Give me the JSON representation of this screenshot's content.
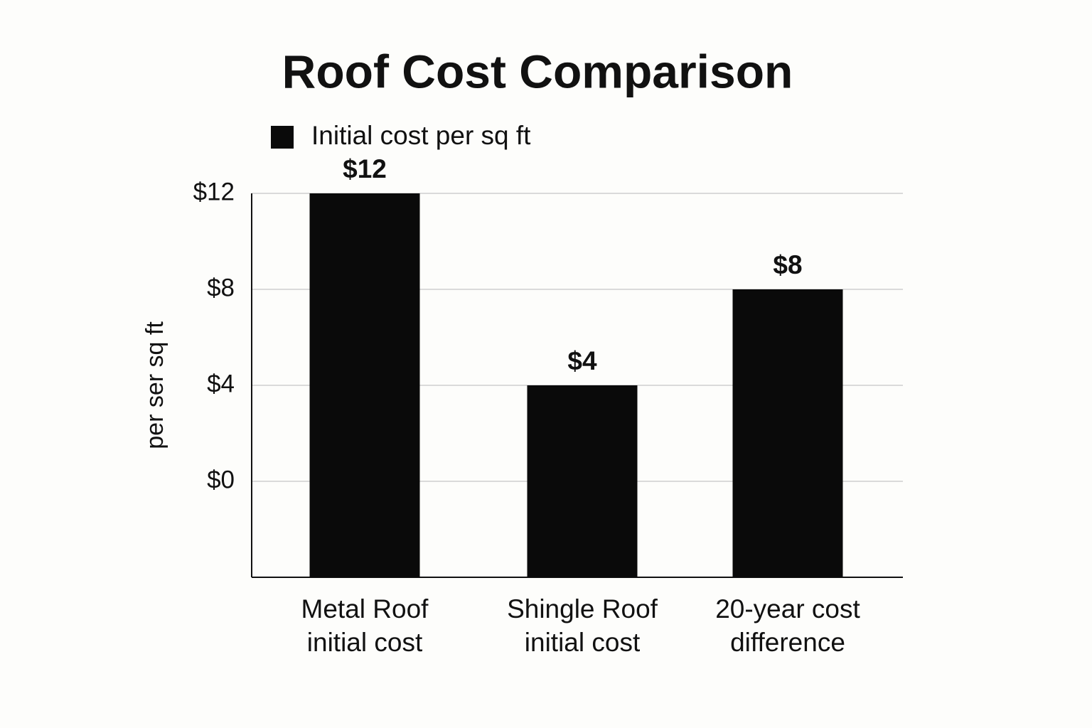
{
  "chart_data": {
    "type": "bar",
    "title": "Roof Cost Comparison",
    "y_label": "per ser sq ft",
    "categories": [
      "Metal Roof\ninitial cost",
      "Shingle Roof\ninitial cost",
      "20-year cost\ndifference"
    ],
    "series": [
      {
        "name": "Initial cost per sq ft",
        "color": "#0a0a0a",
        "values": [
          12,
          4,
          8
        ],
        "value_labels": [
          "$12",
          "$4",
          "$8"
        ]
      }
    ],
    "ylim": [
      -4,
      12
    ],
    "yticks": [
      {
        "value": 0,
        "label": "$0"
      },
      {
        "value": 4,
        "label": "$4"
      },
      {
        "value": 8,
        "label": "$8"
      },
      {
        "value": 12,
        "label": "$12"
      }
    ],
    "grid": true,
    "legend": "top-left"
  }
}
